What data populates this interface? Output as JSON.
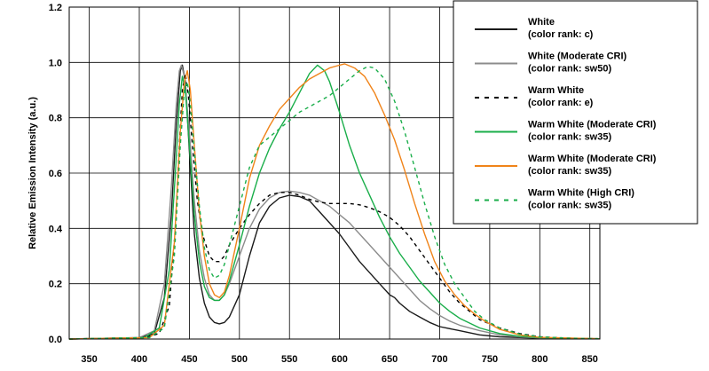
{
  "chart_data": {
    "type": "line",
    "title": "",
    "xlabel": "",
    "ylabel": "Relative Emission Intensity (a.u.)",
    "xlim": [
      330,
      860
    ],
    "ylim": [
      0,
      1.2
    ],
    "x_ticks": [
      350,
      400,
      450,
      500,
      550,
      600,
      650,
      700,
      750,
      800,
      850
    ],
    "y_ticks": [
      0.0,
      0.2,
      0.4,
      0.6,
      0.8,
      1.0,
      1.2
    ],
    "y_tick_labels": [
      "0.0",
      "0.2",
      "0.4",
      "0.6",
      "0.8",
      "1.0",
      "1.2"
    ],
    "grid": true,
    "legend_position": "top-right",
    "series": [
      {
        "name": [
          "White",
          "(color rank: c)"
        ],
        "color": "#1a1a1a",
        "dash": "solid",
        "points": [
          [
            330,
            0
          ],
          [
            400,
            0.005
          ],
          [
            415,
            0.02
          ],
          [
            425,
            0.15
          ],
          [
            432,
            0.45
          ],
          [
            437,
            0.78
          ],
          [
            441,
            0.97
          ],
          [
            443,
            0.99
          ],
          [
            446,
            0.93
          ],
          [
            450,
            0.68
          ],
          [
            455,
            0.38
          ],
          [
            460,
            0.22
          ],
          [
            465,
            0.13
          ],
          [
            470,
            0.08
          ],
          [
            475,
            0.06
          ],
          [
            480,
            0.055
          ],
          [
            485,
            0.06
          ],
          [
            490,
            0.08
          ],
          [
            500,
            0.16
          ],
          [
            510,
            0.3
          ],
          [
            520,
            0.42
          ],
          [
            530,
            0.48
          ],
          [
            540,
            0.51
          ],
          [
            550,
            0.52
          ],
          [
            560,
            0.515
          ],
          [
            570,
            0.5
          ],
          [
            580,
            0.46
          ],
          [
            590,
            0.42
          ],
          [
            600,
            0.38
          ],
          [
            610,
            0.33
          ],
          [
            620,
            0.28
          ],
          [
            630,
            0.24
          ],
          [
            640,
            0.2
          ],
          [
            650,
            0.16
          ],
          [
            655,
            0.15
          ],
          [
            660,
            0.13
          ],
          [
            670,
            0.1
          ],
          [
            680,
            0.08
          ],
          [
            690,
            0.06
          ],
          [
            700,
            0.045
          ],
          [
            720,
            0.03
          ],
          [
            740,
            0.015
          ],
          [
            760,
            0.008
          ],
          [
            800,
            0.003
          ],
          [
            860,
            0.001
          ]
        ]
      },
      {
        "name": [
          "White (Moderate CRI)",
          "(color rank: sw50)"
        ],
        "color": "#8c8c8c",
        "dash": "solid",
        "points": [
          [
            330,
            0
          ],
          [
            400,
            0.005
          ],
          [
            415,
            0.03
          ],
          [
            425,
            0.2
          ],
          [
            432,
            0.55
          ],
          [
            437,
            0.85
          ],
          [
            440,
            0.97
          ],
          [
            442,
            0.99
          ],
          [
            445,
            0.95
          ],
          [
            450,
            0.75
          ],
          [
            455,
            0.5
          ],
          [
            460,
            0.32
          ],
          [
            465,
            0.22
          ],
          [
            470,
            0.16
          ],
          [
            475,
            0.14
          ],
          [
            480,
            0.14
          ],
          [
            485,
            0.16
          ],
          [
            490,
            0.2
          ],
          [
            500,
            0.3
          ],
          [
            510,
            0.4
          ],
          [
            520,
            0.47
          ],
          [
            530,
            0.51
          ],
          [
            540,
            0.53
          ],
          [
            550,
            0.535
          ],
          [
            560,
            0.53
          ],
          [
            570,
            0.52
          ],
          [
            580,
            0.5
          ],
          [
            590,
            0.48
          ],
          [
            600,
            0.45
          ],
          [
            610,
            0.42
          ],
          [
            620,
            0.38
          ],
          [
            630,
            0.34
          ],
          [
            640,
            0.3
          ],
          [
            650,
            0.26
          ],
          [
            660,
            0.22
          ],
          [
            670,
            0.18
          ],
          [
            680,
            0.14
          ],
          [
            690,
            0.11
          ],
          [
            700,
            0.085
          ],
          [
            710,
            0.065
          ],
          [
            720,
            0.05
          ],
          [
            740,
            0.03
          ],
          [
            760,
            0.015
          ],
          [
            780,
            0.008
          ],
          [
            800,
            0.004
          ],
          [
            860,
            0.001
          ]
        ]
      },
      {
        "name": [
          "Warm White",
          "(color rank: e)"
        ],
        "color": "#000000",
        "dash": "dotted",
        "points": [
          [
            330,
            0
          ],
          [
            405,
            0.005
          ],
          [
            420,
            0.02
          ],
          [
            430,
            0.12
          ],
          [
            436,
            0.4
          ],
          [
            440,
            0.7
          ],
          [
            443,
            0.9
          ],
          [
            446,
            0.96
          ],
          [
            449,
            0.88
          ],
          [
            453,
            0.7
          ],
          [
            458,
            0.5
          ],
          [
            463,
            0.38
          ],
          [
            470,
            0.3
          ],
          [
            475,
            0.28
          ],
          [
            480,
            0.28
          ],
          [
            485,
            0.3
          ],
          [
            490,
            0.34
          ],
          [
            500,
            0.4
          ],
          [
            510,
            0.45
          ],
          [
            520,
            0.49
          ],
          [
            530,
            0.52
          ],
          [
            540,
            0.53
          ],
          [
            550,
            0.53
          ],
          [
            560,
            0.52
          ],
          [
            570,
            0.505
          ],
          [
            580,
            0.495
          ],
          [
            590,
            0.49
          ],
          [
            600,
            0.49
          ],
          [
            610,
            0.49
          ],
          [
            620,
            0.485
          ],
          [
            630,
            0.475
          ],
          [
            640,
            0.46
          ],
          [
            650,
            0.44
          ],
          [
            660,
            0.41
          ],
          [
            670,
            0.37
          ],
          [
            680,
            0.32
          ],
          [
            690,
            0.27
          ],
          [
            700,
            0.22
          ],
          [
            710,
            0.17
          ],
          [
            720,
            0.13
          ],
          [
            730,
            0.1
          ],
          [
            740,
            0.07
          ],
          [
            760,
            0.04
          ],
          [
            780,
            0.02
          ],
          [
            800,
            0.008
          ],
          [
            830,
            0.003
          ],
          [
            860,
            0.001
          ]
        ]
      },
      {
        "name": [
          "Warm White (Moderate CRI)",
          "(color rank: sw35)"
        ],
        "color": "#1aae4a",
        "dash": "solid",
        "points": [
          [
            330,
            0
          ],
          [
            405,
            0.005
          ],
          [
            420,
            0.04
          ],
          [
            430,
            0.25
          ],
          [
            436,
            0.6
          ],
          [
            440,
            0.85
          ],
          [
            443,
            0.95
          ],
          [
            446,
            0.9
          ],
          [
            450,
            0.7
          ],
          [
            455,
            0.45
          ],
          [
            460,
            0.28
          ],
          [
            465,
            0.19
          ],
          [
            470,
            0.15
          ],
          [
            475,
            0.14
          ],
          [
            480,
            0.14
          ],
          [
            485,
            0.16
          ],
          [
            490,
            0.21
          ],
          [
            500,
            0.34
          ],
          [
            510,
            0.48
          ],
          [
            520,
            0.6
          ],
          [
            530,
            0.69
          ],
          [
            540,
            0.76
          ],
          [
            550,
            0.82
          ],
          [
            560,
            0.89
          ],
          [
            570,
            0.96
          ],
          [
            578,
            0.99
          ],
          [
            585,
            0.97
          ],
          [
            590,
            0.93
          ],
          [
            600,
            0.82
          ],
          [
            610,
            0.7
          ],
          [
            620,
            0.6
          ],
          [
            630,
            0.52
          ],
          [
            640,
            0.44
          ],
          [
            650,
            0.37
          ],
          [
            660,
            0.31
          ],
          [
            670,
            0.26
          ],
          [
            680,
            0.21
          ],
          [
            690,
            0.17
          ],
          [
            700,
            0.13
          ],
          [
            710,
            0.1
          ],
          [
            720,
            0.075
          ],
          [
            740,
            0.04
          ],
          [
            760,
            0.02
          ],
          [
            780,
            0.01
          ],
          [
            800,
            0.005
          ],
          [
            860,
            0.001
          ]
        ]
      },
      {
        "name": [
          "Warm White (Moderate CRI)",
          "(color rank: sw35)"
        ],
        "color": "#f0841a",
        "dash": "solid",
        "points": [
          [
            330,
            0
          ],
          [
            410,
            0.005
          ],
          [
            425,
            0.05
          ],
          [
            435,
            0.35
          ],
          [
            441,
            0.75
          ],
          [
            445,
            0.93
          ],
          [
            448,
            0.97
          ],
          [
            451,
            0.9
          ],
          [
            455,
            0.7
          ],
          [
            460,
            0.46
          ],
          [
            465,
            0.3
          ],
          [
            470,
            0.2
          ],
          [
            475,
            0.16
          ],
          [
            480,
            0.15
          ],
          [
            485,
            0.17
          ],
          [
            490,
            0.23
          ],
          [
            500,
            0.4
          ],
          [
            510,
            0.58
          ],
          [
            520,
            0.7
          ],
          [
            530,
            0.77
          ],
          [
            540,
            0.83
          ],
          [
            550,
            0.87
          ],
          [
            560,
            0.91
          ],
          [
            570,
            0.94
          ],
          [
            580,
            0.96
          ],
          [
            590,
            0.98
          ],
          [
            600,
            0.99
          ],
          [
            605,
            0.995
          ],
          [
            615,
            0.98
          ],
          [
            625,
            0.95
          ],
          [
            635,
            0.89
          ],
          [
            645,
            0.81
          ],
          [
            655,
            0.72
          ],
          [
            665,
            0.61
          ],
          [
            675,
            0.49
          ],
          [
            685,
            0.38
          ],
          [
            695,
            0.28
          ],
          [
            705,
            0.21
          ],
          [
            715,
            0.16
          ],
          [
            725,
            0.12
          ],
          [
            735,
            0.09
          ],
          [
            745,
            0.065
          ],
          [
            760,
            0.035
          ],
          [
            780,
            0.015
          ],
          [
            800,
            0.006
          ],
          [
            860,
            0.001
          ]
        ]
      },
      {
        "name": [
          "Warm White (High CRI)",
          "(color rank: sw35)"
        ],
        "color": "#1aae4a",
        "dash": "dotted",
        "points": [
          [
            330,
            0
          ],
          [
            410,
            0.005
          ],
          [
            425,
            0.04
          ],
          [
            435,
            0.3
          ],
          [
            441,
            0.7
          ],
          [
            445,
            0.9
          ],
          [
            448,
            0.93
          ],
          [
            451,
            0.85
          ],
          [
            455,
            0.68
          ],
          [
            460,
            0.48
          ],
          [
            465,
            0.33
          ],
          [
            470,
            0.25
          ],
          [
            475,
            0.22
          ],
          [
            480,
            0.23
          ],
          [
            485,
            0.27
          ],
          [
            490,
            0.34
          ],
          [
            500,
            0.48
          ],
          [
            510,
            0.62
          ],
          [
            520,
            0.7
          ],
          [
            530,
            0.73
          ],
          [
            540,
            0.76
          ],
          [
            550,
            0.79
          ],
          [
            560,
            0.82
          ],
          [
            570,
            0.84
          ],
          [
            580,
            0.86
          ],
          [
            590,
            0.88
          ],
          [
            600,
            0.91
          ],
          [
            610,
            0.94
          ],
          [
            620,
            0.97
          ],
          [
            628,
            0.985
          ],
          [
            635,
            0.98
          ],
          [
            645,
            0.94
          ],
          [
            655,
            0.86
          ],
          [
            665,
            0.75
          ],
          [
            675,
            0.62
          ],
          [
            685,
            0.49
          ],
          [
            695,
            0.37
          ],
          [
            705,
            0.27
          ],
          [
            715,
            0.2
          ],
          [
            725,
            0.15
          ],
          [
            735,
            0.1
          ],
          [
            745,
            0.07
          ],
          [
            760,
            0.04
          ],
          [
            780,
            0.018
          ],
          [
            800,
            0.008
          ],
          [
            830,
            0.003
          ],
          [
            860,
            0.001
          ]
        ]
      }
    ]
  }
}
